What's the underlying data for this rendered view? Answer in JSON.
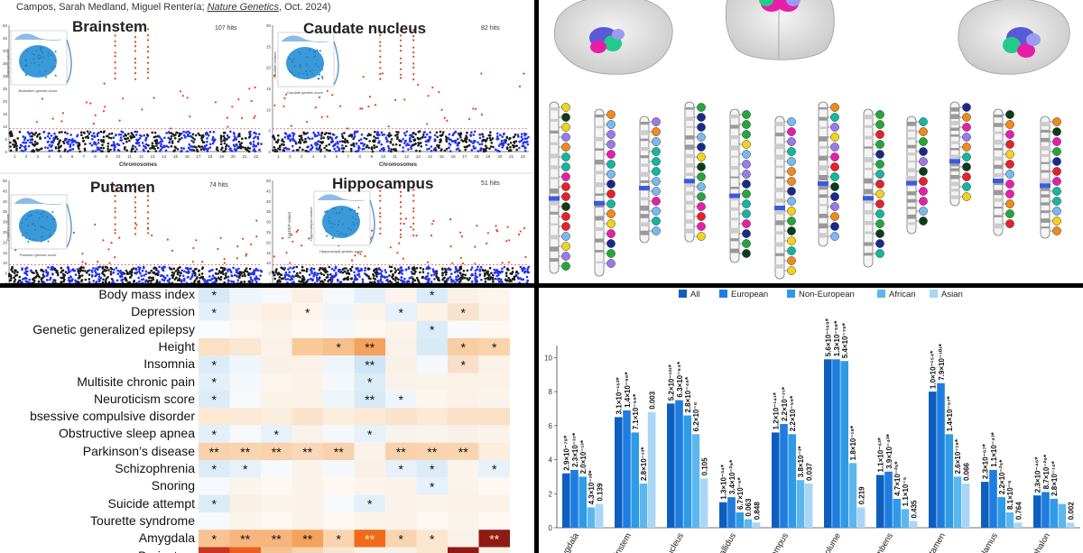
{
  "credit": {
    "authors": "Campos, Sarah Medland, Miguel Rentería; ",
    "journal": "Nature Genetics",
    "tail": ", Oct. 2024)"
  },
  "manhattan": [
    {
      "title": "Brainstem",
      "hits": "107 hits",
      "xlabel": "Chromosomes",
      "inset_x": "Brainstem genetic score",
      "inset_y": "Brainstem volume"
    },
    {
      "title": "Caudate nucleus",
      "hits": "82 hits",
      "xlabel": "Chromosomes",
      "inset_x": "Caudate genetic score",
      "inset_y": "Caudate volume"
    },
    {
      "title": "Putamen",
      "hits": "74 hits",
      "xlabel": "",
      "inset_x": "Putamen genetic score",
      "inset_y": "Putamen volume"
    },
    {
      "title": "Hippocampus",
      "hits": "51 hits",
      "xlabel": "",
      "inset_x": "Hippocampal genetic score",
      "inset_y": "Hippocampal volume"
    }
  ],
  "manhattan_axis": {
    "chromosomes": [
      "1",
      "2",
      "3",
      "4",
      "5",
      "6",
      "7",
      "8",
      "9",
      "10",
      "11",
      "12",
      "13",
      "14",
      "15",
      "16",
      "17",
      "18",
      "19",
      "20",
      "21",
      "22"
    ],
    "yticks_left": [
      "0",
      "5",
      "10",
      "15",
      "20",
      "25",
      "30",
      "35",
      "40",
      "45",
      "50"
    ],
    "yticks_right": [
      "0",
      "5",
      "10",
      "15",
      "20",
      "25",
      "30"
    ],
    "ylabel": "-log10(P-value)"
  },
  "heatmap": {
    "rows": [
      {
        "label": "Body mass index",
        "cells": [
          "*",
          "",
          "",
          "",
          "",
          "",
          "",
          "*",
          "",
          ""
        ]
      },
      {
        "label": "Depression",
        "cells": [
          "*",
          "",
          "",
          "*",
          "",
          "",
          "*",
          "",
          "*",
          ""
        ]
      },
      {
        "label": "Genetic generalized epilepsy",
        "cells": [
          "",
          "",
          "",
          "",
          "",
          "",
          "",
          "*",
          "",
          ""
        ]
      },
      {
        "label": "Height",
        "cells": [
          "",
          "",
          "",
          "",
          "*",
          "**",
          "",
          "",
          "*",
          "*"
        ]
      },
      {
        "label": "Insomnia",
        "cells": [
          "*",
          "",
          "",
          "",
          "",
          "**",
          "",
          "",
          "*",
          ""
        ]
      },
      {
        "label": "Multisite chronic pain",
        "cells": [
          "*",
          "",
          "",
          "",
          "",
          "*",
          "",
          "",
          "",
          ""
        ]
      },
      {
        "label": "Neuroticism score",
        "cells": [
          "*",
          "",
          "",
          "",
          "",
          "**",
          "*",
          "",
          "",
          ""
        ]
      },
      {
        "label": "bsessive compulsive disorder",
        "cells": [
          "",
          "",
          "",
          "",
          "",
          "",
          "",
          "",
          "",
          ""
        ]
      },
      {
        "label": "Obstructive sleep apnea",
        "cells": [
          "*",
          "",
          "*",
          "",
          "",
          "*",
          "",
          "",
          "",
          ""
        ]
      },
      {
        "label": "Parkinson’s disease",
        "cells": [
          "**",
          "**",
          "**",
          "**",
          "**",
          "",
          "**",
          "**",
          "**",
          ""
        ]
      },
      {
        "label": "Schizophrenia",
        "cells": [
          "*",
          "*",
          "",
          "",
          "",
          "",
          "*",
          "*",
          "",
          "*"
        ]
      },
      {
        "label": "Snoring",
        "cells": [
          "",
          "",
          "",
          "",
          "",
          "",
          "",
          "*",
          "",
          ""
        ]
      },
      {
        "label": "Suicide attempt",
        "cells": [
          "*",
          "",
          "",
          "",
          "",
          "*",
          "",
          "",
          "",
          ""
        ]
      },
      {
        "label": "Tourette syndrome",
        "cells": [
          "",
          "",
          "",
          "",
          "",
          "",
          "",
          "",
          "",
          ""
        ]
      },
      {
        "label": "Amygdala",
        "cells": [
          "*",
          "**",
          "**",
          "**",
          "*",
          "**",
          "*",
          "*",
          "",
          "**"
        ]
      }
    ],
    "colors": [
      [
        "#d6e9f6",
        "#eef6fb",
        "#f6f9fc",
        "#fbefe4",
        "#f6f9fc",
        "#e3f0f9",
        "#fbf3ec",
        "#dcecf7",
        "#f9f0e6",
        "#fdf6ef"
      ],
      [
        "#e3f0f9",
        "#f9f3ee",
        "#fcefe2",
        "#fdf5ec",
        "#eef6fb",
        "#fbf4ec",
        "#e6f1f9",
        "#fbf1e5",
        "#f7e3cf",
        "#fbf1e6"
      ],
      [
        "#f9fbfd",
        "#fdf7f1",
        "#fbf4ec",
        "#fdf8f2",
        "#f4f8fb",
        "#fdf7f1",
        "#fcf3ea",
        "#dcecf7",
        "#f7f9fb",
        "#fdf8f3"
      ],
      [
        "#fbe0c4",
        "#fbe6d0",
        "#f9f1ea",
        "#f9c99a",
        "#f7c08c",
        "#f5a25c",
        "#f8f2ea",
        "#d8eaf6",
        "#f7cda4",
        "#fad3ab"
      ],
      [
        "#dcecf7",
        "#eef6fb",
        "#f9f1e8",
        "#fbf1e6",
        "#eef6fb",
        "#cfe4f4",
        "#f9f0e6",
        "#f4f8fb",
        "#f8dfc7",
        "#fbf1e8"
      ],
      [
        "#e3f0f9",
        "#f4f8fb",
        "#fcf5ee",
        "#fbf3ea",
        "#f4f8fb",
        "#dcecf7",
        "#f9f2ea",
        "#fbf4ec",
        "#fbf1e6",
        "#fbf3ea"
      ],
      [
        "#dcecf7",
        "#f6f9fc",
        "#fbf2e8",
        "#fbf1e6",
        "#eef6fb",
        "#d8eaf6",
        "#eef6fb",
        "#fcf6ef",
        "#fbf1e6",
        "#fbf4ec"
      ],
      [
        "#fbe8d5",
        "#fbead8",
        "#fbeedf",
        "#fae3cc",
        "#fbeedf",
        "#fbe8d5",
        "#fae3cc",
        "#fbe8d5",
        "#fae0c7",
        "#fae0c7"
      ],
      [
        "#e3f0f9",
        "#f6f9fc",
        "#e6f1f9",
        "#f9f2ea",
        "#f4f8fb",
        "#e6f1f9",
        "#f9f3ee",
        "#fbf4ec",
        "#f9f1e8",
        "#fbf3ea"
      ],
      [
        "#f8d2ad",
        "#f9d4b1",
        "#f8d2ad",
        "#f8d8b8",
        "#f8d2ad",
        "#fbf3ea",
        "#f8d2ad",
        "#f9d4b1",
        "#f9d4b1",
        "#fbeedf"
      ],
      [
        "#dcecf7",
        "#e6f1f9",
        "#f6f9fc",
        "#fbf3ea",
        "#f4f8fb",
        "#f9f1e8",
        "#e6f1f9",
        "#dcecf7",
        "#fbf4ec",
        "#e6f1f9"
      ],
      [
        "#f6f9fc",
        "#fbf4ec",
        "#fcf7f1",
        "#fbf3ea",
        "#fdf8f2",
        "#fbf4ec",
        "#fbf3ea",
        "#e6f1f9",
        "#fbf4ec",
        "#fdf8f3"
      ],
      [
        "#dcecf7",
        "#f9f0e6",
        "#fbf4ec",
        "#fbf3ea",
        "#f6f9fc",
        "#e3f0f9",
        "#fbf3ea",
        "#fbf4ec",
        "#fbf1e6",
        "#fbf3ea"
      ],
      [
        "#f6f9fc",
        "#fbf4ec",
        "#fcf7f1",
        "#fbf3ea",
        "#fdf8f2",
        "#fbf4ec",
        "#fbf3ea",
        "#fdf8f3",
        "#fbf4ec",
        "#fdf8f3"
      ],
      [
        "#f7c393",
        "#f6b57c",
        "#f6b57c",
        "#f5a25c",
        "#f9d4b1",
        "#f06a1a",
        "#f9d4b1",
        "#fbe6d0",
        "#f9f1ea",
        "#8f1a14"
      ]
    ],
    "partial_last_colors": [
      "#c8361f",
      "#e8611f",
      "#f7c393",
      "#f9d4b1",
      "#f9e6d0",
      "#fbf1e6",
      "#f9f0e6",
      "#fbe6d0",
      "#8f1a14",
      "#fbf1e6"
    ],
    "partial_last_label": "Brainstem"
  },
  "karyotype_count": 12,
  "chart_data": {
    "type": "bar",
    "legend": [
      "All",
      "European",
      "Non-European",
      "African",
      "Asian"
    ],
    "series_colors": [
      "#0d5fbf",
      "#1f7de0",
      "#2f9be6",
      "#5cb7ee",
      "#a9d6f5"
    ],
    "yticks": [
      "0",
      "2",
      "4",
      "6",
      "8",
      "10"
    ],
    "ylim": [
      0,
      10.5
    ],
    "categories": [
      "Amygdala",
      "Brainstem",
      "Caudate nucleus",
      "Pallidus",
      "Hippocampus",
      "Intracranial volume",
      "Nucleus accumbens",
      "Putamen",
      "Thalamus",
      "Diencephalon"
    ],
    "category_labels": [
      "Amygdala",
      "Brainstem",
      "nucleus",
      "Pallidus",
      "campus",
      "ICV volume",
      "mbens",
      "Putamen",
      "Thalamus",
      "ephalon"
    ],
    "series": [
      {
        "name": "All",
        "values": [
          3.2,
          6.5,
          7.3,
          1.5,
          5.6,
          9.9,
          3.1,
          8.0,
          2.7,
          1.9
        ]
      },
      {
        "name": "European",
        "values": [
          3.4,
          6.9,
          7.5,
          1.8,
          6.1,
          9.9,
          3.3,
          8.5,
          3.4,
          2.1
        ]
      },
      {
        "name": "Non-European",
        "values": [
          3.0,
          5.6,
          6.6,
          0.9,
          5.5,
          9.8,
          1.7,
          5.5,
          1.8,
          1.7
        ]
      },
      {
        "name": "African",
        "values": [
          1.2,
          2.6,
          5.5,
          0.5,
          2.8,
          3.8,
          1.1,
          3.0,
          0.9,
          1.4
        ]
      },
      {
        "name": "Asian",
        "values": [
          1.4,
          6.8,
          2.9,
          0.3,
          2.6,
          1.2,
          0.4,
          2.6,
          0.3,
          0.3
        ]
      }
    ],
    "annotations": [
      [
        "2.9×10⁻⁷⁸*",
        "2.3×10⁻³⁷*",
        "2.0×10⁻¹³*",
        "4.3×10⁻¹⁰*",
        "0.139"
      ],
      [
        "3.1×10⁻¹⁶³*",
        "1.4×10⁻⁹⁶*",
        "7.1×10⁻⁵⁹*",
        "2.8×10⁻¹³*",
        "0.003"
      ],
      [
        "5.2×10⁻¹³¹*",
        "6.3×10⁻⁶⁴*",
        "2.8×10⁻⁴⁶*",
        "6.2×10⁻⁶",
        "0.105"
      ],
      [
        "1.3×10⁻³⁴*",
        "3.4×10⁻²⁶*",
        "6.7×10⁻⁵*",
        "0.063",
        "0.848"
      ],
      [
        "1.2×10⁻¹⁴¹*",
        "2.2×10⁻⁷¹*",
        "2.2×10⁻⁵⁹*",
        "3.8×10⁻³*",
        "0.037"
      ],
      [
        "5.6×10⁻¹⁶⁹*",
        "1.3×10⁻⁹⁸*",
        "5.4×10⁻⁷⁶*",
        "1.8×10⁻¹⁸*",
        "0.219"
      ],
      [
        "1.1×10⁻⁶³*",
        "3.9×10⁻⁴²*",
        "4.7×10⁻²⁵*",
        "1.1×10⁻⁵",
        "0.435"
      ],
      [
        "1.0×10⁻¹⁵⁴*",
        "7.9×10⁻¹⁰¹*",
        "1.4×10⁻⁵⁷*",
        "2.6×10⁻¹⁹*",
        "0.066"
      ],
      [
        "2.3×10⁻⁶⁷*",
        "1.1×10⁻⁴³*",
        "2.2×10⁻²⁵*",
        "8.1×10⁻⁶",
        "0.764"
      ],
      [
        "2.3×10⁻⁴⁶*",
        "8.7×10⁻²⁹*",
        "2.8×10⁻¹⁴*",
        "",
        "0.002"
      ]
    ]
  }
}
